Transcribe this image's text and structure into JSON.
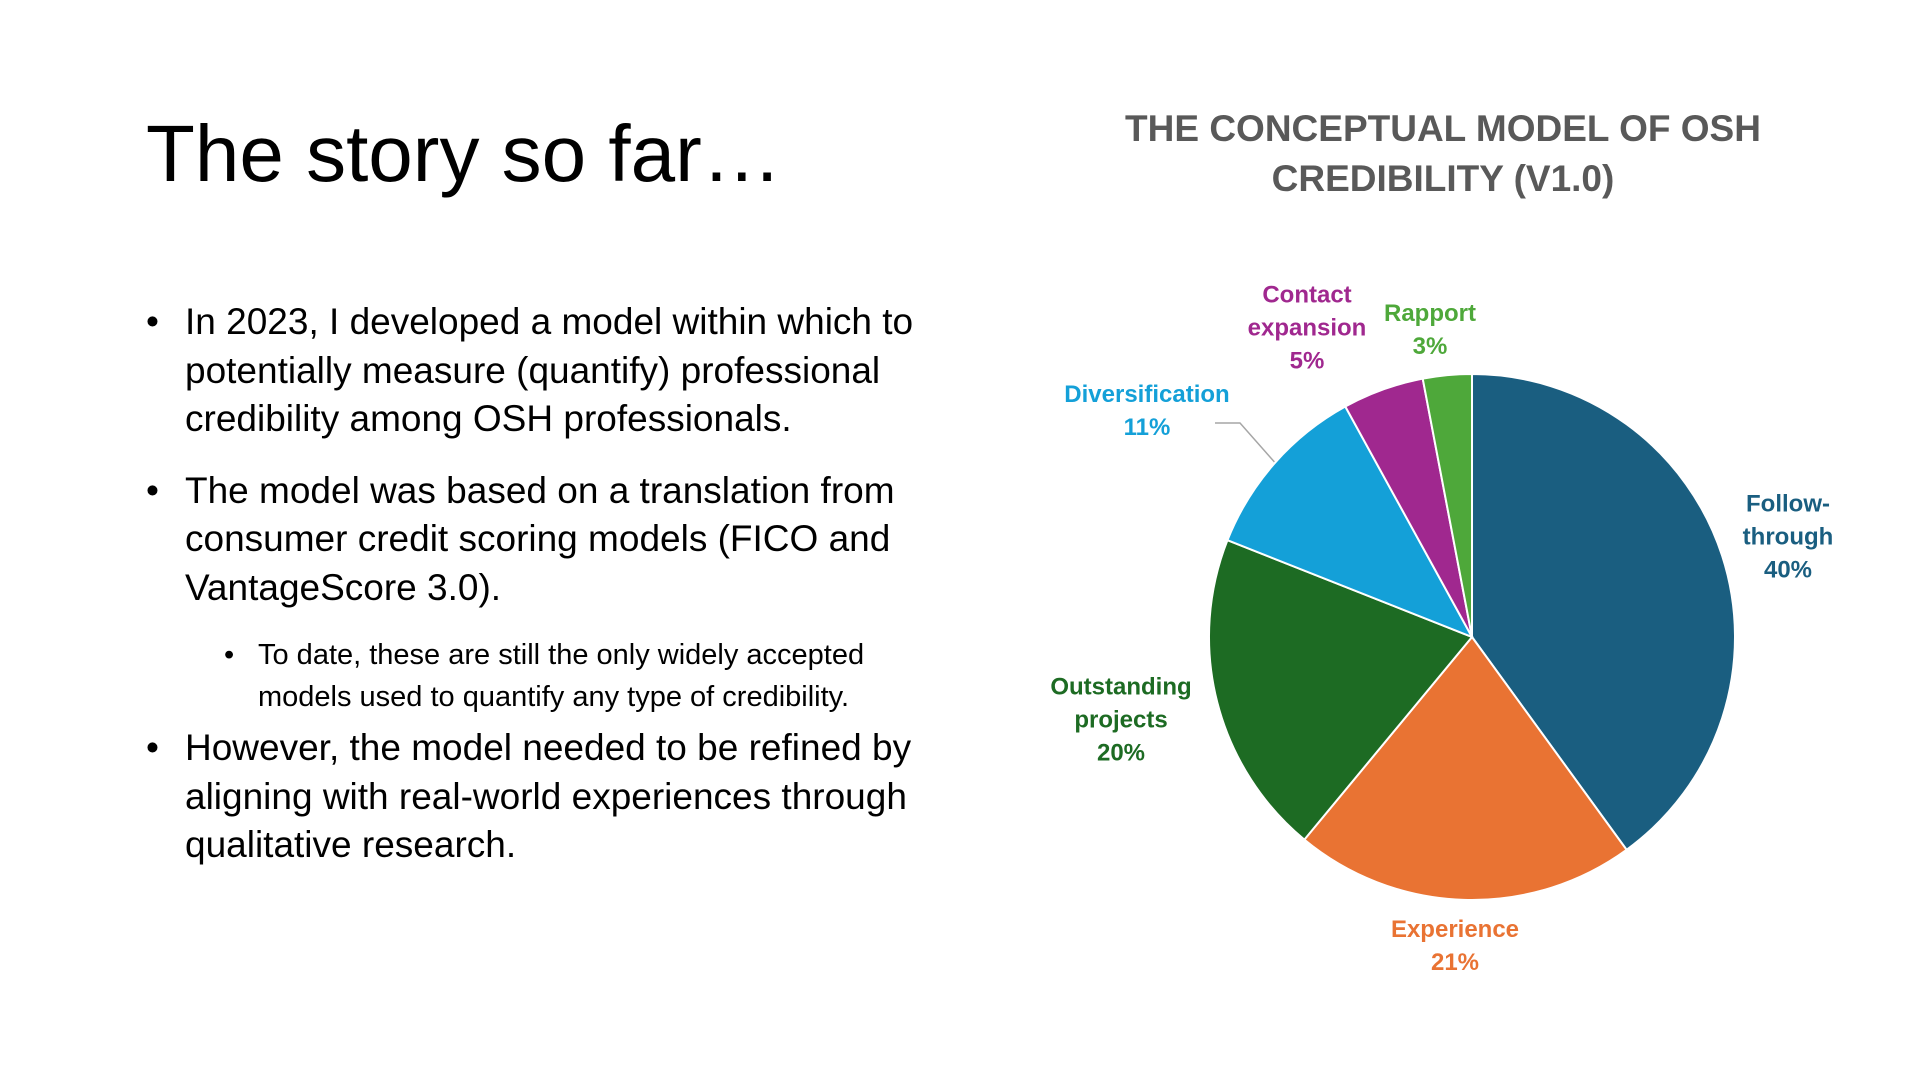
{
  "header": {
    "title": "The story so far…"
  },
  "bullets": [
    {
      "text": "In 2023, I developed a model within which to potentially measure (quantify) professional credibility among OSH professionals.",
      "sub_bullets": []
    },
    {
      "text": "The model was based on a translation from consumer credit scoring models (FICO and VantageScore 3.0).",
      "sub_bullets": [
        "To date, these are still the only widely accepted models used to quantify any type of credibility."
      ]
    },
    {
      "text": "However, the model needed to be refined by aligning with real-world experiences through qualitative research.",
      "sub_bullets": []
    }
  ],
  "chart_data": {
    "type": "pie",
    "title": "THE CONCEPTUAL MODEL OF OSH CREDIBILITY (V1.0)",
    "categories": [
      "Follow-through",
      "Experience",
      "Outstanding projects",
      "Diversification",
      "Contact expansion",
      "Rapport"
    ],
    "values": [
      40,
      21,
      20,
      11,
      5,
      3
    ],
    "value_labels": [
      "40%",
      "21%",
      "20%",
      "11%",
      "5%",
      "3%"
    ],
    "colors": [
      "#1a5e80",
      "#e97333",
      "#1d6b23",
      "#14a0d8",
      "#a0288f",
      "#4ea83a"
    ]
  }
}
